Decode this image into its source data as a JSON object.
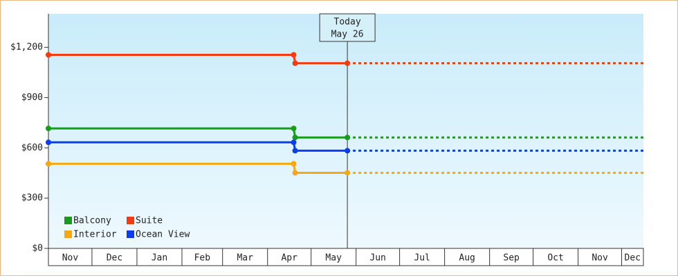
{
  "chart_data": {
    "type": "step-line",
    "xlim": [
      0,
      410
    ],
    "months": [
      {
        "value": 0,
        "label": "Nov"
      },
      {
        "value": 30,
        "label": "Dec"
      },
      {
        "value": 61,
        "label": "Jan"
      },
      {
        "value": 92,
        "label": "Feb"
      },
      {
        "value": 120,
        "label": "Mar"
      },
      {
        "value": 151,
        "label": "Apr"
      },
      {
        "value": 181,
        "label": "May"
      },
      {
        "value": 212,
        "label": "Jun"
      },
      {
        "value": 242,
        "label": "Jul"
      },
      {
        "value": 273,
        "label": "Aug"
      },
      {
        "value": 304,
        "label": "Sep"
      },
      {
        "value": 334,
        "label": "Oct"
      },
      {
        "value": 365,
        "label": "Nov"
      },
      {
        "value": 395,
        "label": "Dec"
      }
    ],
    "ylim": [
      0,
      1400
    ],
    "yticks": [
      {
        "value": 0,
        "label": "$0"
      },
      {
        "value": 300,
        "label": "$300"
      },
      {
        "value": 600,
        "label": "$600"
      },
      {
        "value": 900,
        "label": "$900"
      },
      {
        "value": 1200,
        "label": "$1,200"
      }
    ],
    "today": {
      "value": 206,
      "label": [
        "Today",
        "May 26"
      ]
    },
    "x": [
      0,
      169,
      170,
      206
    ],
    "series": [
      {
        "name": "Balcony",
        "color": "#169c16",
        "values": [
          716,
          716,
          662,
          662
        ]
      },
      {
        "name": "Suite",
        "color": "#f03c10",
        "values": [
          1155,
          1155,
          1105,
          1105
        ]
      },
      {
        "name": "Interior",
        "color": "#f5a80f",
        "values": [
          505,
          505,
          451,
          451
        ]
      },
      {
        "name": "Ocean View",
        "color": "#0c3cf0",
        "values": [
          633,
          633,
          583,
          583
        ]
      }
    ]
  }
}
